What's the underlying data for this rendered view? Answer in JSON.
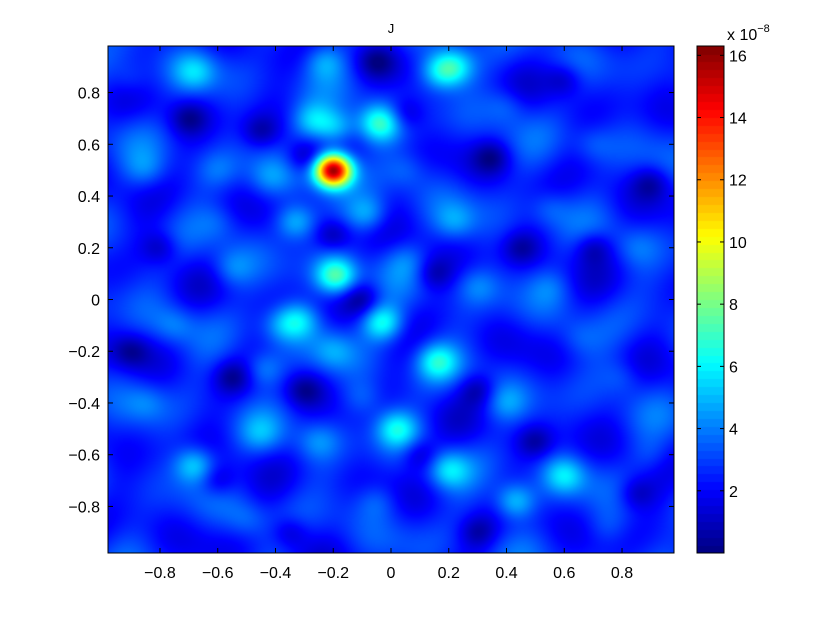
{
  "chart_data": {
    "type": "heatmap",
    "title": "J",
    "xlabel": "",
    "ylabel": "",
    "xlim": [
      -0.98,
      0.98
    ],
    "ylim": [
      -0.98,
      0.98
    ],
    "xticks": [
      -0.8,
      -0.6,
      -0.4,
      -0.2,
      0,
      0.2,
      0.4,
      0.6,
      0.8
    ],
    "yticks": [
      0.8,
      0.6,
      0.4,
      0.2,
      0,
      -0.2,
      -0.4,
      -0.6,
      -0.8
    ],
    "xtick_labels": [
      "−0.8",
      "−0.6",
      "−0.4",
      "−0.2",
      "0",
      "0.2",
      "0.4",
      "0.6",
      "0.8"
    ],
    "ytick_labels": [
      "0.8",
      "0.6",
      "0.4",
      "0.2",
      "0",
      "−0.2",
      "−0.4",
      "−0.6",
      "−0.8"
    ],
    "grid": false,
    "colormap": "jet",
    "colorbar": {
      "range": [
        0,
        16.3
      ],
      "ticks": [
        2,
        4,
        6,
        8,
        10,
        12,
        14,
        16
      ],
      "tick_labels": [
        "2",
        "4",
        "6",
        "8",
        "10",
        "12",
        "14",
        "16"
      ],
      "exponent_prefix": "x 10",
      "exponent": "−8"
    },
    "background_level": 2.6,
    "peaks": [
      {
        "x": -0.2,
        "y": 0.5,
        "value": 16.2
      },
      {
        "x": -0.19,
        "y": 0.09,
        "value": 7.5
      },
      {
        "x": -0.04,
        "y": 0.68,
        "value": 6.6
      },
      {
        "x": -0.19,
        "y": 0.66,
        "value": 5.4
      },
      {
        "x": -0.27,
        "y": 0.69,
        "value": 5.2
      },
      {
        "x": -0.03,
        "y": -0.09,
        "value": 6.6
      },
      {
        "x": -0.32,
        "y": -0.08,
        "value": 5.3
      },
      {
        "x": -0.33,
        "y": 0.3,
        "value": 5.5
      },
      {
        "x": -0.08,
        "y": 0.33,
        "value": 4.8
      },
      {
        "x": 0.02,
        "y": -0.5,
        "value": 5.8
      },
      {
        "x": 0.16,
        "y": -0.24,
        "value": 5.9
      },
      {
        "x": 0.22,
        "y": 0.9,
        "value": 5.7
      },
      {
        "x": 0.17,
        "y": 0.88,
        "value": 5.4
      },
      {
        "x": -0.68,
        "y": 0.88,
        "value": 4.7
      },
      {
        "x": -0.23,
        "y": 0.92,
        "value": 4.5
      },
      {
        "x": -0.68,
        "y": -0.64,
        "value": 5.6
      },
      {
        "x": 0.2,
        "y": -0.66,
        "value": 5.3
      },
      {
        "x": 0.43,
        "y": -0.78,
        "value": 5.7
      },
      {
        "x": 0.6,
        "y": -0.68,
        "value": 5.2
      },
      {
        "x": -0.44,
        "y": -0.27,
        "value": 4.5
      },
      {
        "x": -0.38,
        "y": -0.1,
        "value": 4.2
      },
      {
        "x": -0.2,
        "y": -0.2,
        "value": 4.0
      },
      {
        "x": -0.55,
        "y": 0.12,
        "value": 4.0
      },
      {
        "x": 0.22,
        "y": 0.3,
        "value": 4.2
      },
      {
        "x": -0.75,
        "y": -0.1,
        "value": 3.8
      },
      {
        "x": -0.45,
        "y": -0.52,
        "value": 4.0
      },
      {
        "x": -0.25,
        "y": -0.55,
        "value": 4.0
      },
      {
        "x": 0.4,
        "y": -0.4,
        "value": 4.0
      },
      {
        "x": 0.55,
        "y": 0.35,
        "value": 3.8
      },
      {
        "x": 0.7,
        "y": 0.6,
        "value": 3.6
      },
      {
        "x": 0.8,
        "y": -0.3,
        "value": 3.6
      },
      {
        "x": 0.85,
        "y": 0.2,
        "value": 3.4
      },
      {
        "x": -0.85,
        "y": 0.5,
        "value": 3.8
      },
      {
        "x": -0.6,
        "y": 0.5,
        "value": 3.6
      },
      {
        "x": 0.4,
        "y": 0.75,
        "value": 3.8
      },
      {
        "x": 0.55,
        "y": 0.05,
        "value": 3.5
      },
      {
        "x": -0.85,
        "y": -0.4,
        "value": 3.6
      },
      {
        "x": 0.3,
        "y": 0.05,
        "value": 3.9
      },
      {
        "x": -0.05,
        "y": -0.78,
        "value": 3.8
      },
      {
        "x": 0.75,
        "y": -0.88,
        "value": 3.4
      },
      {
        "x": -0.9,
        "y": 0.85,
        "value": 3.6
      },
      {
        "x": -0.1,
        "y": -0.38,
        "value": 3.8
      },
      {
        "x": 0.05,
        "y": 0.15,
        "value": 3.6
      },
      {
        "x": -0.42,
        "y": 0.47,
        "value": 3.9
      },
      {
        "x": 0.05,
        "y": 0.5,
        "value": 3.6
      },
      {
        "x": -0.6,
        "y": 0.3,
        "value": 3.4
      },
      {
        "x": 0.9,
        "y": -0.6,
        "value": 3.4
      },
      {
        "x": 0.65,
        "y": -0.15,
        "value": 3.4
      },
      {
        "x": -0.5,
        "y": -0.85,
        "value": 3.6
      }
    ],
    "troughs": [
      {
        "x": -0.2,
        "y": 0.25,
        "value": 0.6
      },
      {
        "x": -0.1,
        "y": 0.0,
        "value": 0.8
      },
      {
        "x": -0.3,
        "y": 0.55,
        "value": 0.8
      },
      {
        "x": 0.05,
        "y": 0.72,
        "value": 0.9
      },
      {
        "x": -0.45,
        "y": 0.65,
        "value": 1.0
      },
      {
        "x": 0.35,
        "y": 0.55,
        "value": 0.8
      },
      {
        "x": -0.55,
        "y": -0.3,
        "value": 0.9
      },
      {
        "x": 0.3,
        "y": -0.35,
        "value": 0.8
      },
      {
        "x": -0.3,
        "y": -0.35,
        "value": 1.0
      },
      {
        "x": 0.1,
        "y": -0.6,
        "value": 0.9
      },
      {
        "x": -0.6,
        "y": -0.7,
        "value": 1.0
      },
      {
        "x": 0.5,
        "y": -0.55,
        "value": 0.9
      },
      {
        "x": 0.7,
        "y": 0.2,
        "value": 0.9
      },
      {
        "x": -0.8,
        "y": 0.2,
        "value": 1.0
      },
      {
        "x": 0.45,
        "y": 0.2,
        "value": 1.1
      },
      {
        "x": -0.7,
        "y": 0.7,
        "value": 1.0
      },
      {
        "x": 0.6,
        "y": 0.85,
        "value": 1.0
      },
      {
        "x": -0.35,
        "y": -0.9,
        "value": 1.0
      },
      {
        "x": 0.3,
        "y": -0.9,
        "value": 1.0
      },
      {
        "x": 0.85,
        "y": -0.75,
        "value": 1.0
      },
      {
        "x": 0.9,
        "y": 0.45,
        "value": 1.0
      },
      {
        "x": -0.9,
        "y": -0.2,
        "value": 1.0
      },
      {
        "x": -0.05,
        "y": 0.92,
        "value": 1.0
      },
      {
        "x": 0.15,
        "y": 0.1,
        "value": 1.0
      }
    ]
  }
}
